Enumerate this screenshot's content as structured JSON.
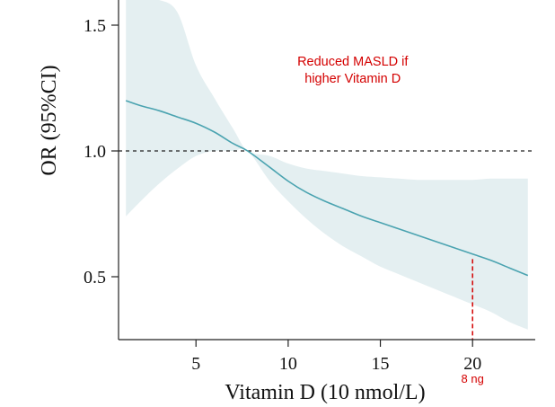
{
  "chart_data": {
    "type": "line",
    "title": "",
    "xlabel": "Vitamin D (10 nmol/L)",
    "ylabel": "OR (95%CI)",
    "xlim": [
      0.8,
      23.4
    ],
    "ylim": [
      0.25,
      1.6
    ],
    "xticks": [
      5,
      10,
      15,
      20
    ],
    "yticks": [
      0.5,
      1.0,
      1.5
    ],
    "ytick_labels": [
      "0.5",
      "1.0",
      "1.5"
    ],
    "reference_line": {
      "y": 1.0,
      "style": "dashed",
      "color": "#222222"
    },
    "series": [
      {
        "name": "OR",
        "color": "#4aa3b0",
        "x": [
          1.2,
          2,
          3,
          4,
          5,
          6,
          7,
          7.8,
          9,
          10,
          11,
          12,
          13,
          14,
          15,
          16,
          17,
          18,
          19,
          20,
          21,
          22,
          23
        ],
        "y": [
          1.2,
          1.18,
          1.16,
          1.135,
          1.11,
          1.075,
          1.03,
          1.0,
          0.935,
          0.88,
          0.835,
          0.8,
          0.77,
          0.74,
          0.715,
          0.69,
          0.665,
          0.64,
          0.615,
          0.59,
          0.565,
          0.535,
          0.505
        ],
        "ci_lower": [
          0.74,
          0.8,
          0.87,
          0.93,
          0.98,
          1.0,
          1.0,
          1.0,
          0.88,
          0.8,
          0.73,
          0.67,
          0.62,
          0.58,
          0.54,
          0.51,
          0.48,
          0.45,
          0.42,
          0.39,
          0.36,
          0.32,
          0.29
        ],
        "ci_upper": [
          1.65,
          1.65,
          1.65,
          1.55,
          1.34,
          1.21,
          1.09,
          1.0,
          0.98,
          0.95,
          0.93,
          0.92,
          0.91,
          0.9,
          0.895,
          0.89,
          0.885,
          0.885,
          0.885,
          0.885,
          0.89,
          0.89,
          0.89
        ],
        "band_color": "#e4eff1"
      }
    ],
    "annotations": [
      {
        "id": "reduced",
        "lines": [
          "Reduced MASLD if",
          "higher Vitamin D"
        ],
        "color": "#d40000",
        "x": 13.5,
        "y": 1.34
      },
      {
        "id": "marker",
        "text": "8 ng",
        "color": "#d40000",
        "x": 20,
        "marker_line_top": 0.57,
        "style": "dashed"
      }
    ]
  }
}
